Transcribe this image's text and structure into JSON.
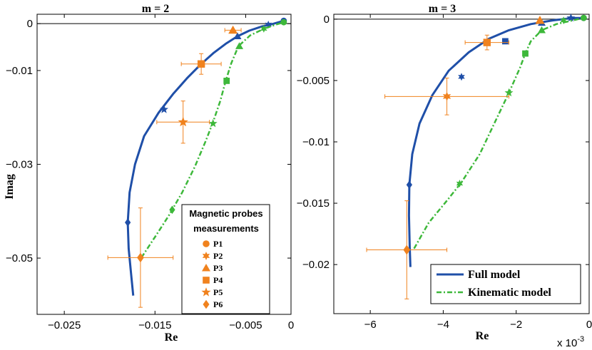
{
  "colors": {
    "full_model": "#1f4fa8",
    "kinematic_model": "#3db83a",
    "measurement": "#f0821e"
  },
  "chart_data": [
    {
      "type": "scatter",
      "title": "m = 2",
      "xlabel": "Re",
      "ylabel": "Imag",
      "xlim": [
        -0.028,
        0.0
      ],
      "ylim": [
        -0.062,
        0.002
      ],
      "xticks": [
        -0.025,
        -0.015,
        -0.005,
        0
      ],
      "xtick_labels": [
        "−0.025",
        "−0.015",
        "−0.005",
        "0"
      ],
      "yticks": [
        0,
        -0.01,
        -0.03,
        -0.05
      ],
      "ytick_labels": [
        "0",
        "−0.01",
        "−0.03",
        "−0.05"
      ],
      "grid": false,
      "legend": {
        "title_lines": [
          "Magnetic probes",
          "measurements"
        ],
        "placement": "lower-right",
        "entries": [
          {
            "label": "P1",
            "marker": "circle"
          },
          {
            "label": "P2",
            "marker": "star6"
          },
          {
            "label": "P3",
            "marker": "triangle"
          },
          {
            "label": "P4",
            "marker": "square"
          },
          {
            "label": "P5",
            "marker": "star5"
          },
          {
            "label": "P6",
            "marker": "diamond"
          }
        ]
      },
      "series": [
        {
          "role": "full_model",
          "style": "solid",
          "line": [
            [
              -0.0174,
              -0.058
            ],
            [
              -0.0176,
              -0.054
            ],
            [
              -0.0179,
              -0.048
            ],
            [
              -0.018,
              -0.0424
            ],
            [
              -0.0178,
              -0.036
            ],
            [
              -0.0172,
              -0.03
            ],
            [
              -0.0162,
              -0.024
            ],
            [
              -0.0146,
              -0.019
            ],
            [
              -0.013,
              -0.015
            ],
            [
              -0.0114,
              -0.0115
            ],
            [
              -0.0099,
              -0.0086
            ],
            [
              -0.0085,
              -0.0062
            ],
            [
              -0.0072,
              -0.0043
            ],
            [
              -0.0059,
              -0.0027
            ],
            [
              -0.0046,
              -0.0015
            ],
            [
              -0.0032,
              -0.0006
            ],
            [
              -0.0019,
              0.0
            ],
            [
              -0.0008,
              0.0006
            ]
          ],
          "markers": [
            {
              "marker": "diamond",
              "x": -0.018,
              "y": -0.0424
            },
            {
              "marker": "star5",
              "x": -0.014,
              "y": -0.0183
            },
            {
              "marker": "square",
              "x": -0.0099,
              "y": -0.0086
            },
            {
              "marker": "triangle",
              "x": -0.0059,
              "y": -0.0027
            },
            {
              "marker": "star6",
              "x": -0.0025,
              "y": -0.0002
            },
            {
              "marker": "circle",
              "x": -0.0008,
              "y": 0.0006
            }
          ]
        },
        {
          "role": "kinematic_model",
          "style": "dashdot",
          "line": [
            [
              -0.0165,
              -0.0499
            ],
            [
              -0.015,
              -0.0455
            ],
            [
              -0.0135,
              -0.041
            ],
            [
              -0.012,
              -0.036
            ],
            [
              -0.0106,
              -0.0305
            ],
            [
              -0.0094,
              -0.025
            ],
            [
              -0.0086,
              -0.021
            ],
            [
              -0.0078,
              -0.0165
            ],
            [
              -0.0072,
              -0.0122
            ],
            [
              -0.0066,
              -0.0085
            ],
            [
              -0.0058,
              -0.0048
            ],
            [
              -0.0045,
              -0.0025
            ],
            [
              -0.003,
              -0.0011
            ],
            [
              -0.0018,
              -0.0003
            ],
            [
              -0.0008,
              0.0003
            ]
          ],
          "markers": [
            {
              "marker": "diamond",
              "x": -0.0131,
              "y": -0.0397
            },
            {
              "marker": "star5",
              "x": -0.0086,
              "y": -0.0213
            },
            {
              "marker": "square",
              "x": -0.0071,
              "y": -0.0122
            },
            {
              "marker": "triangle",
              "x": -0.0057,
              "y": -0.0048
            },
            {
              "marker": "star6",
              "x": -0.003,
              "y": -0.0011
            },
            {
              "marker": "circle",
              "x": -0.0008,
              "y": 0.0003
            }
          ]
        }
      ],
      "measurements": [
        {
          "probe": "P3",
          "marker": "triangle",
          "x": -0.0064,
          "y": -0.0014,
          "xerr": 0.0009,
          "yerr": 0.0
        },
        {
          "probe": "P4",
          "marker": "square",
          "x": -0.0099,
          "y": -0.0086,
          "xerr": 0.0022,
          "yerr": 0.0022
        },
        {
          "probe": "P5",
          "marker": "star5",
          "x": -0.0119,
          "y": -0.021,
          "xerr": 0.0029,
          "yerr": 0.0045
        },
        {
          "probe": "P6",
          "marker": "diamond",
          "x": -0.0166,
          "y": -0.0499,
          "xerr": 0.0036,
          "yerr": 0.0106
        }
      ]
    },
    {
      "type": "scatter",
      "title": "m = 3",
      "xlabel": "Re",
      "ylabel": "",
      "x_multiplier": "x 10",
      "x_multiplier_exp": "-3",
      "xlim": [
        -7.0,
        0.0
      ],
      "ylim": [
        -0.024,
        0.0004
      ],
      "xticks": [
        -6,
        -4,
        -2,
        0
      ],
      "xtick_labels": [
        "−6",
        "−4",
        "−2",
        "0"
      ],
      "yticks": [
        0,
        -0.005,
        -0.01,
        -0.015,
        -0.02
      ],
      "ytick_labels": [
        "0",
        "−0.005",
        "−0.01",
        "−0.015",
        "−0.02"
      ],
      "grid": false,
      "legend": {
        "placement": "lower-right",
        "entries": [
          {
            "label": "Full model",
            "role": "full_model"
          },
          {
            "label": "Kinematic model",
            "role": "kinematic_model"
          }
        ]
      },
      "series": [
        {
          "role": "full_model",
          "style": "solid",
          "line": [
            [
              -4.9,
              -0.0202
            ],
            [
              -4.92,
              -0.0185
            ],
            [
              -4.94,
              -0.016
            ],
            [
              -4.93,
              -0.0135
            ],
            [
              -4.85,
              -0.011
            ],
            [
              -4.65,
              -0.0085
            ],
            [
              -4.3,
              -0.0062
            ],
            [
              -3.85,
              -0.0042
            ],
            [
              -3.3,
              -0.0027
            ],
            [
              -2.75,
              -0.0016
            ],
            [
              -2.2,
              -0.0009
            ],
            [
              -1.6,
              -0.0004
            ],
            [
              -1.0,
              -0.0001
            ],
            [
              -0.45,
              0.0001
            ],
            [
              -0.15,
              0.0001
            ]
          ],
          "markers": [
            {
              "marker": "diamond",
              "x": -4.93,
              "y": -0.0135
            },
            {
              "marker": "star6",
              "x": -3.5,
              "y": -0.0047
            },
            {
              "marker": "square",
              "x": -2.3,
              "y": -0.0018
            },
            {
              "marker": "triangle",
              "x": -1.3,
              "y": -0.0003
            },
            {
              "marker": "star5",
              "x": -0.5,
              "y": 0.0001
            },
            {
              "marker": "circle",
              "x": -0.15,
              "y": 0.0001
            }
          ]
        },
        {
          "role": "kinematic_model",
          "style": "dashdot",
          "line": [
            [
              -4.8,
              -0.0187
            ],
            [
              -4.4,
              -0.0166
            ],
            [
              -3.9,
              -0.0148
            ],
            [
              -3.5,
              -0.0133
            ],
            [
              -3.0,
              -0.011
            ],
            [
              -2.6,
              -0.0085
            ],
            [
              -2.2,
              -0.006
            ],
            [
              -1.9,
              -0.004
            ],
            [
              -1.75,
              -0.0028
            ],
            [
              -1.6,
              -0.0018
            ],
            [
              -1.3,
              -0.0009
            ],
            [
              -0.9,
              -0.0004
            ],
            [
              -0.45,
              -0.0001
            ],
            [
              -0.15,
              0.0001
            ]
          ],
          "markers": [
            {
              "marker": "star6",
              "x": -3.55,
              "y": -0.0134
            },
            {
              "marker": "star5",
              "x": -2.2,
              "y": -0.006
            },
            {
              "marker": "square",
              "x": -1.75,
              "y": -0.0028
            },
            {
              "marker": "triangle",
              "x": -1.3,
              "y": -0.0009
            },
            {
              "marker": "star6",
              "x": -0.7,
              "y": -0.0001
            },
            {
              "marker": "circle",
              "x": -0.15,
              "y": 0.0001
            }
          ]
        }
      ],
      "measurements": [
        {
          "probe": "P3",
          "marker": "triangle",
          "x": -1.35,
          "y": -0.0001,
          "xerr": 0.0,
          "yerr": 0.0
        },
        {
          "probe": "P4",
          "marker": "square",
          "x": -2.8,
          "y": -0.0019,
          "xerr": 0.6,
          "yerr": 0.0006
        },
        {
          "probe": "P2",
          "marker": "star6",
          "x": -3.9,
          "y": -0.0063,
          "xerr": 1.7,
          "yerr": 0.0015
        },
        {
          "probe": "P6",
          "marker": "diamond",
          "x": -5.0,
          "y": -0.0188,
          "xerr": 1.1,
          "yerr": 0.004
        }
      ]
    }
  ]
}
